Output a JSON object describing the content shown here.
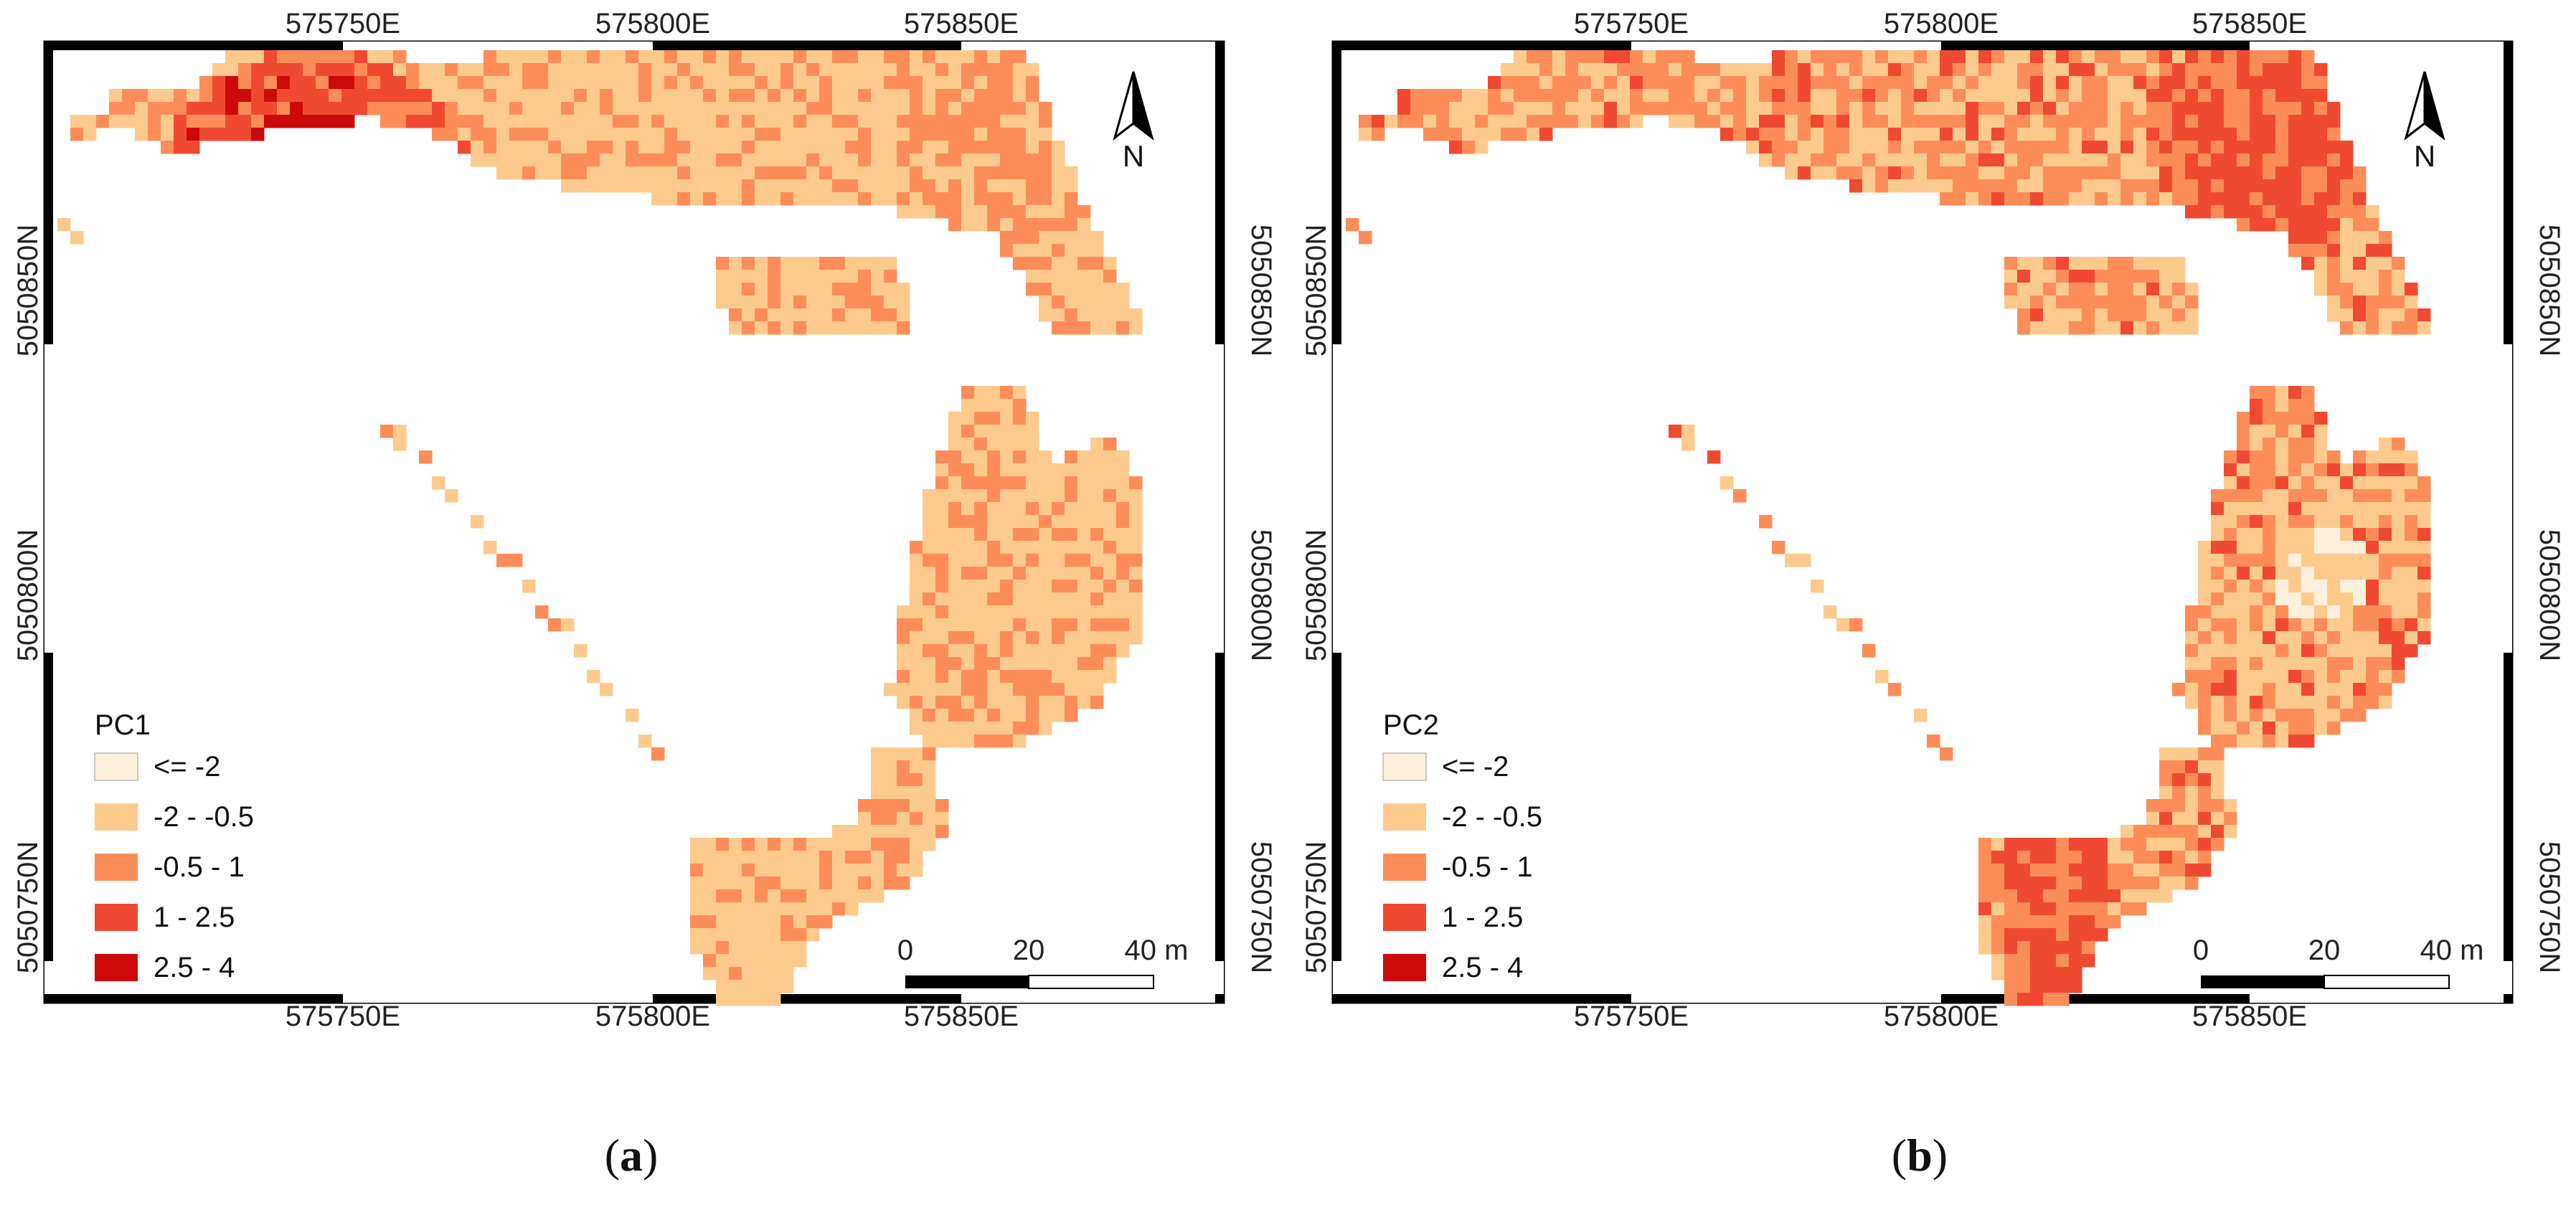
{
  "colors": {
    "class1": "#fdf0dc",
    "class2": "#fdca8e",
    "class3": "#fc8d59",
    "class4": "#ef4a31",
    "class5": "#cc0a0a",
    "frame": "#000000"
  },
  "panels": [
    {
      "id": "a",
      "caption_open": "(",
      "caption_letter": "a",
      "caption_close": ")",
      "legend_title": "PC1",
      "legend": [
        "<= -2",
        "-2 - -0.5",
        "-0.5 - 1",
        "1 - 2.5",
        "2.5 - 4"
      ],
      "x_ticks_top": [
        "575750E",
        "575800E",
        "575850E"
      ],
      "x_ticks_bottom": [
        "575750E",
        "575800E",
        "575850E"
      ],
      "y_ticks_left": [
        "5050850N",
        "5050800N",
        "5050750N"
      ],
      "y_ticks_right": [
        "5050850N",
        "5050800N",
        "5050750N"
      ],
      "north_label": "N",
      "north_arrow_icon": "north-arrow-icon",
      "scale_labels": [
        "0",
        "20",
        "40 m"
      ]
    },
    {
      "id": "b",
      "caption_open": "(",
      "caption_letter": "b",
      "caption_close": ")",
      "legend_title": "PC2",
      "legend": [
        "<= -2",
        "-2 - -0.5",
        "-0.5 - 1",
        "1 - 2.5",
        "2.5 - 4"
      ],
      "x_ticks_top": [
        "575750E",
        "575800E",
        "575850E"
      ],
      "x_ticks_bottom": [
        "575750E",
        "575800E",
        "575850E"
      ],
      "y_ticks_left": [
        "5050850N",
        "5050800N",
        "5050750N"
      ],
      "y_ticks_right": [
        "5050850N",
        "5050800N",
        "5050750N"
      ],
      "north_label": "N",
      "north_arrow_icon": "north-arrow-icon",
      "scale_labels": [
        "0",
        "20",
        "40 m"
      ]
    }
  ]
}
